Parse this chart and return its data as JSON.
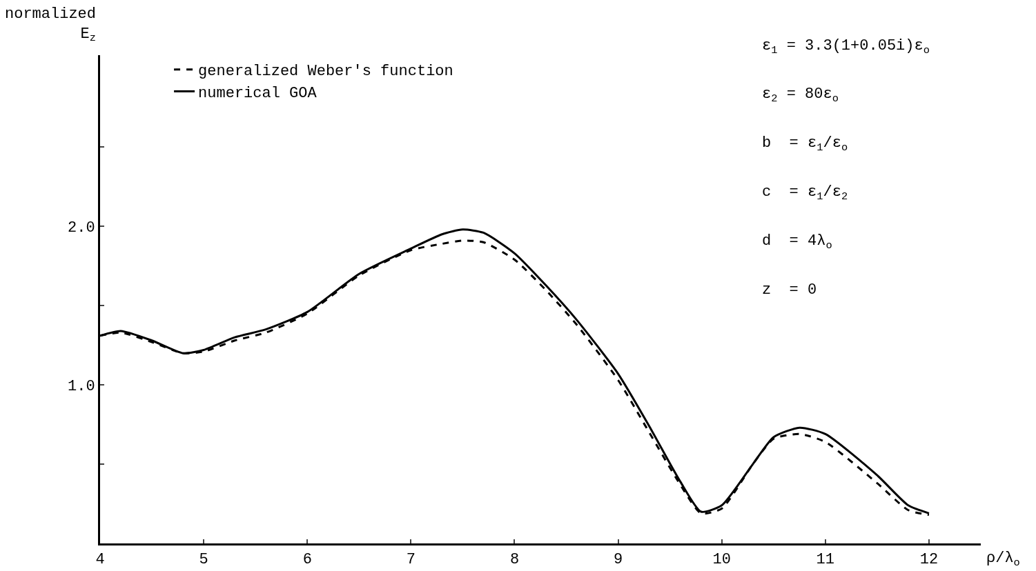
{
  "chart_data": {
    "type": "line",
    "xlabel": "ρ/λ$_{o}$",
    "ylabel": "normalized E$_{z}$",
    "x": [
      4.0,
      4.2,
      4.5,
      4.8,
      5.0,
      5.3,
      5.6,
      6.0,
      6.5,
      7.0,
      7.3,
      7.5,
      7.7,
      8.0,
      8.3,
      8.6,
      9.0,
      9.3,
      9.6,
      9.8,
      10.0,
      10.3,
      10.5,
      10.75,
      11.0,
      11.5,
      11.8,
      12.0
    ],
    "series": [
      {
        "name": "generalized Weber's function",
        "color": "#000000",
        "line_style": "dashed",
        "values": [
          1.31,
          1.33,
          1.27,
          1.2,
          1.21,
          1.28,
          1.33,
          1.45,
          1.69,
          1.85,
          1.89,
          1.91,
          1.9,
          1.79,
          1.6,
          1.38,
          1.03,
          0.7,
          0.37,
          0.19,
          0.22,
          0.5,
          0.66,
          0.69,
          0.64,
          0.38,
          0.21,
          0.18
        ]
      },
      {
        "name": "numerical GOA",
        "color": "#000000",
        "line_style": "solid",
        "values": [
          1.31,
          1.34,
          1.28,
          1.2,
          1.22,
          1.3,
          1.35,
          1.46,
          1.7,
          1.86,
          1.95,
          1.98,
          1.96,
          1.83,
          1.63,
          1.41,
          1.07,
          0.74,
          0.39,
          0.2,
          0.24,
          0.5,
          0.67,
          0.73,
          0.69,
          0.43,
          0.24,
          0.19
        ]
      }
    ],
    "xlim": [
      4,
      12.5
    ],
    "ylim": [
      0,
      3.08
    ],
    "xticks": [
      4,
      5,
      6,
      7,
      8,
      9,
      10,
      11,
      12
    ],
    "yticks": [
      {
        "value": 0.5,
        "label": null
      },
      {
        "value": 1,
        "label": "1.0"
      },
      {
        "value": 1.5,
        "label": null
      },
      {
        "value": 2,
        "label": "2.0"
      },
      {
        "value": 2.5,
        "label": null
      }
    ],
    "grid": false,
    "legend": "top left",
    "marker": "none",
    "annotations": [
      "ε$_{1}$ = 3.3(1+0.05i)ε$_{o}$",
      "ε$_{2}$ = 80ε$_{o}$",
      "b  = ε$_{1}$/ε$_{o}$",
      "c  = ε$_{1}$/ε$_{2}$",
      "d  = 4λ$_{o}$",
      "z  = 0"
    ]
  }
}
